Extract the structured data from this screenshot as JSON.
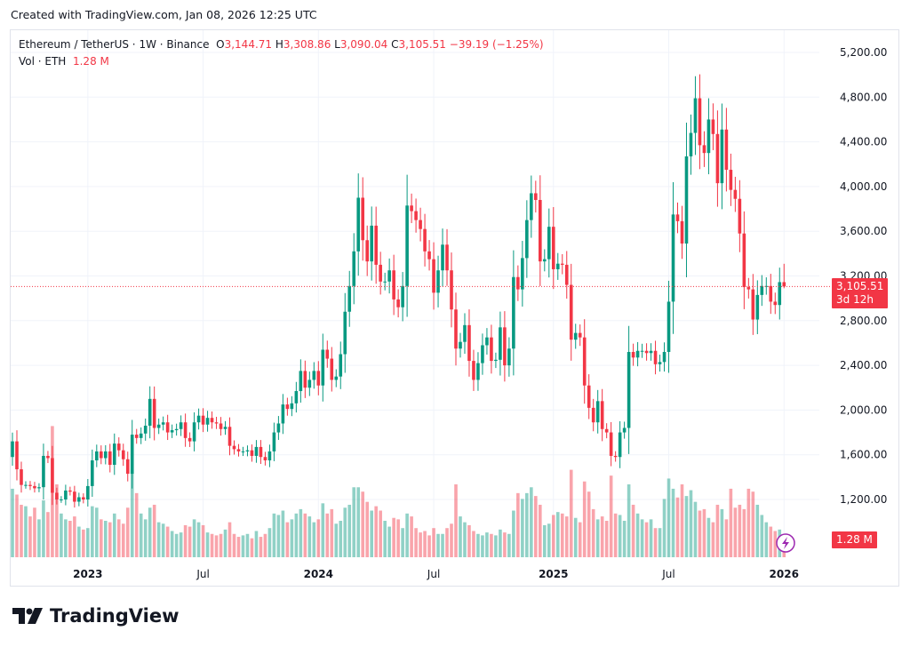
{
  "header": {
    "created": "Created with TradingView.com, Jan 08, 2026 12:25 UTC"
  },
  "legend": {
    "symbol": "Ethereum / TetherUS · 1W · Binance",
    "o_label": "O",
    "o": "3,144.71",
    "h_label": "H",
    "h": "3,308.86",
    "l_label": "L",
    "l": "3,090.04",
    "c_label": "C",
    "c": "3,105.51",
    "change": "−39.19 (−1.25%)",
    "vol_label": "Vol · ETH",
    "vol": "1.28 M"
  },
  "price_tag": {
    "price": "3,105.51",
    "countdown": "3d 12h"
  },
  "vol_tag": "1.28 M",
  "logo": "TradingView",
  "colors": {
    "up": "#089981",
    "down": "#f23645",
    "grid": "#f0f3fa",
    "icon": "#9c27b0"
  },
  "chart_data": {
    "type": "candlestick",
    "interval": "1W",
    "first_week": "2022-09-05",
    "first_open": 1580,
    "y_ticks": [
      "5,200.00",
      "4,800.00",
      "4,400.00",
      "4,000.00",
      "3,600.00",
      "3,200.00",
      "2,800.00",
      "2,400.00",
      "2,000.00",
      "1,600.00",
      "1,200.00"
    ],
    "y_tick_values": [
      5200,
      4800,
      4400,
      4000,
      3600,
      3200,
      2800,
      2400,
      2000,
      1600,
      1200
    ],
    "x_ticks": [
      {
        "label": "2023",
        "week": 17
      },
      {
        "label": "Jul",
        "week": 43
      },
      {
        "label": "2024",
        "week": 69
      },
      {
        "label": "Jul",
        "week": 95
      },
      {
        "label": "2025",
        "week": 122
      },
      {
        "label": "Jul",
        "week": 148
      },
      {
        "label": "2026",
        "week": 174
      }
    ],
    "last": {
      "open": 3144.71,
      "high": 3308.86,
      "low": 3090.04,
      "close": 3105.51
    },
    "closes": [
      1720,
      1470,
      1330,
      1330,
      1320,
      1300,
      1310,
      1590,
      1570,
      1260,
      1200,
      1200,
      1280,
      1270,
      1180,
      1220,
      1200,
      1320,
      1550,
      1630,
      1570,
      1630,
      1510,
      1700,
      1640,
      1560,
      1430,
      1780,
      1750,
      1790,
      1860,
      2100,
      1840,
      1870,
      1890,
      1800,
      1820,
      1830,
      1890,
      1750,
      1720,
      1890,
      1950,
      1870,
      1930,
      1890,
      1880,
      1830,
      1850,
      1680,
      1650,
      1630,
      1630,
      1640,
      1590,
      1670,
      1580,
      1550,
      1630,
      1800,
      1880,
      2050,
      2010,
      2060,
      2170,
      2350,
      2200,
      2270,
      2350,
      2220,
      2540,
      2460,
      2270,
      2300,
      2500,
      2880,
      3110,
      3420,
      3900,
      3520,
      3330,
      3650,
      3300,
      3150,
      3150,
      3250,
      2990,
      2920,
      3110,
      3830,
      3780,
      3700,
      3620,
      3420,
      3350,
      3050,
      3250,
      3480,
      3250,
      2900,
      2550,
      2610,
      2760,
      2440,
      2270,
      2420,
      2580,
      2650,
      2440,
      2450,
      2740,
      2400,
      2550,
      3190,
      3080,
      3360,
      3700,
      3940,
      3880,
      3330,
      3350,
      3640,
      3260,
      3310,
      3300,
      3120,
      2630,
      2690,
      2650,
      2220,
      2020,
      1890,
      2080,
      1830,
      1800,
      1590,
      1580,
      1800,
      1840,
      2520,
      2470,
      2530,
      2530,
      2510,
      2530,
      2410,
      2430,
      2520,
      2970,
      3750,
      3690,
      3490,
      4270,
      4480,
      4790,
      4370,
      4300,
      4600,
      4470,
      4030,
      4510,
      4150,
      3970,
      3890,
      3580,
      3100,
      3080,
      2810,
      3030,
      3110,
      3110,
      2970,
      2940,
      3144.71,
      3105.51
    ],
    "volumes_m": [
      4.7,
      4.3,
      3.6,
      3.5,
      2.8,
      3.4,
      2.6,
      3.9,
      3.1,
      9.0,
      5.0,
      3.0,
      2.6,
      2.5,
      2.8,
      2.1,
      1.9,
      2.0,
      3.5,
      3.4,
      2.6,
      2.5,
      2.4,
      3.0,
      2.6,
      2.3,
      3.4,
      6.0,
      4.4,
      3.0,
      2.6,
      3.4,
      3.6,
      2.4,
      2.3,
      2.1,
      1.8,
      1.6,
      1.7,
      2.2,
      2.1,
      2.6,
      2.4,
      2.2,
      1.7,
      1.6,
      1.5,
      1.6,
      1.9,
      2.4,
      1.6,
      1.4,
      1.5,
      1.6,
      1.3,
      1.8,
      1.4,
      1.6,
      2.0,
      3.0,
      2.9,
      3.2,
      2.4,
      2.6,
      3.0,
      3.3,
      3.0,
      2.8,
      2.4,
      2.6,
      3.7,
      3.0,
      3.3,
      2.3,
      2.5,
      3.4,
      3.6,
      4.8,
      4.8,
      4.5,
      3.8,
      3.2,
      3.5,
      3.2,
      2.5,
      2.1,
      2.7,
      2.6,
      2.0,
      3.0,
      2.8,
      2.0,
      1.7,
      1.8,
      1.5,
      2.0,
      1.6,
      1.6,
      2.0,
      2.3,
      5.0,
      2.8,
      2.4,
      2.2,
      1.8,
      1.6,
      1.5,
      1.7,
      1.6,
      1.5,
      1.9,
      1.7,
      1.6,
      3.2,
      4.4,
      4.0,
      4.4,
      4.8,
      4.2,
      3.6,
      2.2,
      2.3,
      2.9,
      3.1,
      3.0,
      2.8,
      6.0,
      2.7,
      2.4,
      5.2,
      4.5,
      3.3,
      2.6,
      2.8,
      2.5,
      5.6,
      3.0,
      2.9,
      2.5,
      5.0,
      3.6,
      3.0,
      2.6,
      2.4,
      2.6,
      2.0,
      2.0,
      4.0,
      5.4,
      4.7,
      4.1,
      5.0,
      4.2,
      4.6,
      3.8,
      3.2,
      3.3,
      2.7,
      2.4,
      3.6,
      3.3,
      2.6,
      4.7,
      3.4,
      3.6,
      3.3,
      4.7,
      4.5,
      3.6,
      2.9,
      2.4,
      2.1,
      1.8,
      1.9,
      1.28
    ]
  }
}
